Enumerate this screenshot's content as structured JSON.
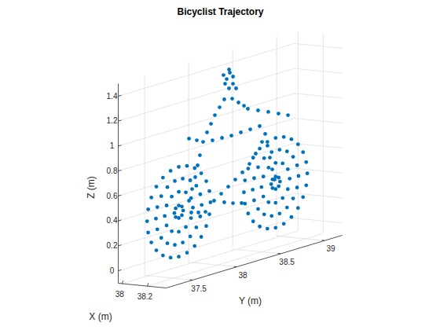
{
  "chart_data": {
    "type": "scatter3",
    "title": "Bicyclist Trajectory",
    "xlabel": "X (m)",
    "ylabel": "Y (m)",
    "zlabel": "Z (m)",
    "color": "#0072bd",
    "marker": "circle",
    "grid": true,
    "xlim": [
      37.97,
      38.35
    ],
    "xticks": [
      38,
      38.2
    ],
    "ylim": [
      37.2,
      39.2
    ],
    "yticks": [
      37.5,
      38,
      38.5,
      39
    ],
    "zlim": [
      -0.1,
      1.5
    ],
    "zticks": [
      0,
      0.2,
      0.4,
      0.6,
      0.8,
      1,
      1.2,
      1.4
    ],
    "x": [
      38.15,
      38.15,
      38.15,
      38.15,
      38.15,
      38.15,
      38.15,
      38.15,
      38.15,
      38.15,
      38.15,
      38.15,
      38.15,
      38.15,
      38.15,
      38.15,
      38.15,
      38.15,
      38.15,
      38.15,
      38.15,
      38.15,
      38.15,
      38.15,
      38.15,
      38.15,
      38.15,
      38.15,
      38.15,
      38.15,
      38.15,
      38.15,
      38.15,
      38.15,
      38.15,
      38.15,
      38.15,
      38.15,
      38.15,
      38.15,
      38.15,
      38.15,
      38.15,
      38.15,
      38.15,
      38.15,
      38.15,
      38.15,
      38.15,
      38.15,
      38.15,
      38.15,
      38.15,
      38.15,
      38.15,
      38.15,
      38.15,
      38.15,
      38.15,
      38.15,
      38.15,
      38.15,
      38.15,
      38.15,
      38.15,
      38.15,
      38.15,
      38.15,
      38.15,
      38.15,
      38.15,
      38.15,
      38.15,
      38.15,
      38.15,
      38.15,
      38.15,
      38.15,
      38.15,
      38.15,
      38.15,
      38.15,
      38.15,
      38.15,
      38.15,
      38.15,
      38.15,
      38.15,
      38.15,
      38.15,
      38.15,
      38.15,
      38.15,
      38.15,
      38.15,
      38.15,
      38.15,
      38.15,
      38.15,
      38.15,
      38.15,
      38.15,
      38.15,
      38.15,
      38.15,
      38.15,
      38.15,
      38.15,
      38.15,
      38.15,
      38.15,
      38.15,
      38.15,
      38.15,
      38.15,
      38.15,
      38.15,
      38.15,
      38.15,
      38.15,
      38.15,
      38.15,
      38.15,
      38.15,
      38.15,
      38.15,
      38.15,
      38.15,
      38.15,
      38.15,
      38.15,
      38.15,
      38.15,
      38.15,
      38.15,
      38.15,
      38.15,
      38.15,
      38.15,
      38.15,
      38.15,
      38.15,
      38.15,
      38.15,
      38.15,
      38.15,
      38.15,
      38.15,
      38.15,
      38.15,
      38.15,
      38.15,
      38.15,
      38.15,
      38.15,
      38.15,
      38.15,
      38.15,
      38.15,
      38.15,
      38.15,
      38.15,
      38.15,
      38.15,
      38.15,
      38.15,
      38.15,
      38.15,
      38.15,
      38.15,
      38.15,
      38.15,
      38.15,
      38.15,
      38.15,
      38.15,
      38.15,
      38.15,
      38.15
    ],
    "y": [
      37.99,
      37.978,
      37.942,
      37.885,
      37.81,
      37.723,
      37.63,
      37.537,
      37.45,
      37.375,
      37.318,
      37.282,
      37.27,
      37.282,
      37.318,
      37.375,
      37.45,
      37.537,
      37.63,
      37.723,
      37.81,
      37.885,
      37.942,
      37.978,
      37.89,
      37.874,
      37.829,
      37.76,
      37.675,
      37.585,
      37.5,
      37.431,
      37.386,
      37.37,
      37.386,
      37.431,
      37.5,
      37.585,
      37.675,
      37.76,
      37.829,
      37.874,
      37.79,
      37.769,
      37.71,
      37.63,
      37.55,
      37.491,
      37.47,
      37.491,
      37.55,
      37.63,
      37.71,
      37.769,
      37.68,
      37.665,
      37.63,
      37.595,
      37.58,
      37.595,
      37.63,
      37.665,
      39.09,
      39.078,
      39.042,
      38.985,
      38.91,
      38.823,
      38.73,
      38.637,
      38.55,
      38.475,
      38.418,
      38.382,
      38.37,
      38.382,
      38.418,
      38.475,
      38.55,
      38.637,
      38.73,
      38.823,
      38.91,
      38.985,
      39.042,
      39.078,
      38.99,
      38.974,
      38.929,
      38.86,
      38.775,
      38.685,
      38.6,
      38.531,
      38.486,
      38.47,
      38.486,
      38.531,
      38.6,
      38.685,
      38.775,
      38.86,
      38.929,
      38.974,
      38.89,
      38.869,
      38.81,
      38.73,
      38.65,
      38.591,
      38.57,
      38.591,
      38.65,
      38.73,
      38.81,
      38.869,
      38.78,
      38.765,
      38.73,
      38.695,
      38.68,
      38.695,
      38.73,
      38.765,
      37.746,
      37.781,
      37.817,
      37.844,
      37.87,
      37.746,
      37.835,
      37.906,
      37.772,
      37.853,
      37.933,
      38.031,
      38.112,
      38.192,
      38.272,
      38.353,
      38.433,
      38.504,
      38.576,
      38.147,
      38.246,
      38.344,
      38.013,
      38.121,
      38.228,
      38.335,
      38.442,
      38.549,
      38.612,
      38.638,
      38.665,
      38.692,
      38.719,
      38.415,
      38.531,
      38.647,
      38.763,
      38.871,
      37.951,
      37.996,
      38.04,
      38.094,
      38.147,
      38.237,
      38.308,
      38.371,
      38.174,
      38.246,
      38.21,
      38.138,
      38.156,
      38.246,
      38.201,
      38.281,
      38.201
    ],
    "z": [
      0.4,
      0.493,
      0.58,
      0.655,
      0.712,
      0.748,
      0.76,
      0.748,
      0.712,
      0.655,
      0.58,
      0.493,
      0.4,
      0.307,
      0.22,
      0.145,
      0.088,
      0.052,
      0.04,
      0.052,
      0.088,
      0.145,
      0.22,
      0.307,
      0.4,
      0.489,
      0.567,
      0.625,
      0.656,
      0.656,
      0.625,
      0.567,
      0.489,
      0.4,
      0.311,
      0.233,
      0.175,
      0.144,
      0.144,
      0.175,
      0.233,
      0.311,
      0.4,
      0.48,
      0.539,
      0.56,
      0.539,
      0.48,
      0.4,
      0.32,
      0.261,
      0.24,
      0.261,
      0.32,
      0.4,
      0.435,
      0.45,
      0.435,
      0.4,
      0.365,
      0.35,
      0.365,
      0.4,
      0.493,
      0.58,
      0.655,
      0.712,
      0.748,
      0.76,
      0.748,
      0.712,
      0.655,
      0.58,
      0.493,
      0.4,
      0.307,
      0.22,
      0.145,
      0.088,
      0.052,
      0.04,
      0.052,
      0.088,
      0.145,
      0.22,
      0.307,
      0.4,
      0.489,
      0.567,
      0.625,
      0.656,
      0.656,
      0.625,
      0.567,
      0.489,
      0.4,
      0.311,
      0.233,
      0.175,
      0.144,
      0.144,
      0.175,
      0.233,
      0.311,
      0.4,
      0.48,
      0.539,
      0.56,
      0.539,
      0.48,
      0.4,
      0.32,
      0.261,
      0.24,
      0.261,
      0.32,
      0.4,
      0.435,
      0.45,
      0.435,
      0.4,
      0.365,
      0.35,
      0.365,
      0.464,
      0.551,
      0.638,
      0.727,
      0.803,
      0.962,
      0.93,
      0.902,
      0.364,
      0.347,
      0.336,
      0.404,
      0.443,
      0.483,
      0.523,
      0.563,
      0.615,
      0.682,
      0.761,
      0.367,
      0.339,
      0.319,
      0.892,
      0.889,
      0.885,
      0.888,
      0.89,
      0.893,
      0.817,
      0.717,
      0.616,
      0.516,
      0.429,
      1.06,
      1.023,
      0.986,
      0.948,
      0.913,
      0.969,
      1.028,
      1.088,
      1.14,
      1.192,
      1.179,
      1.133,
      1.094,
      1.35,
      1.354,
      1.393,
      1.389,
      1.316,
      1.297,
      1.269,
      1.252,
      1.42
    ]
  }
}
